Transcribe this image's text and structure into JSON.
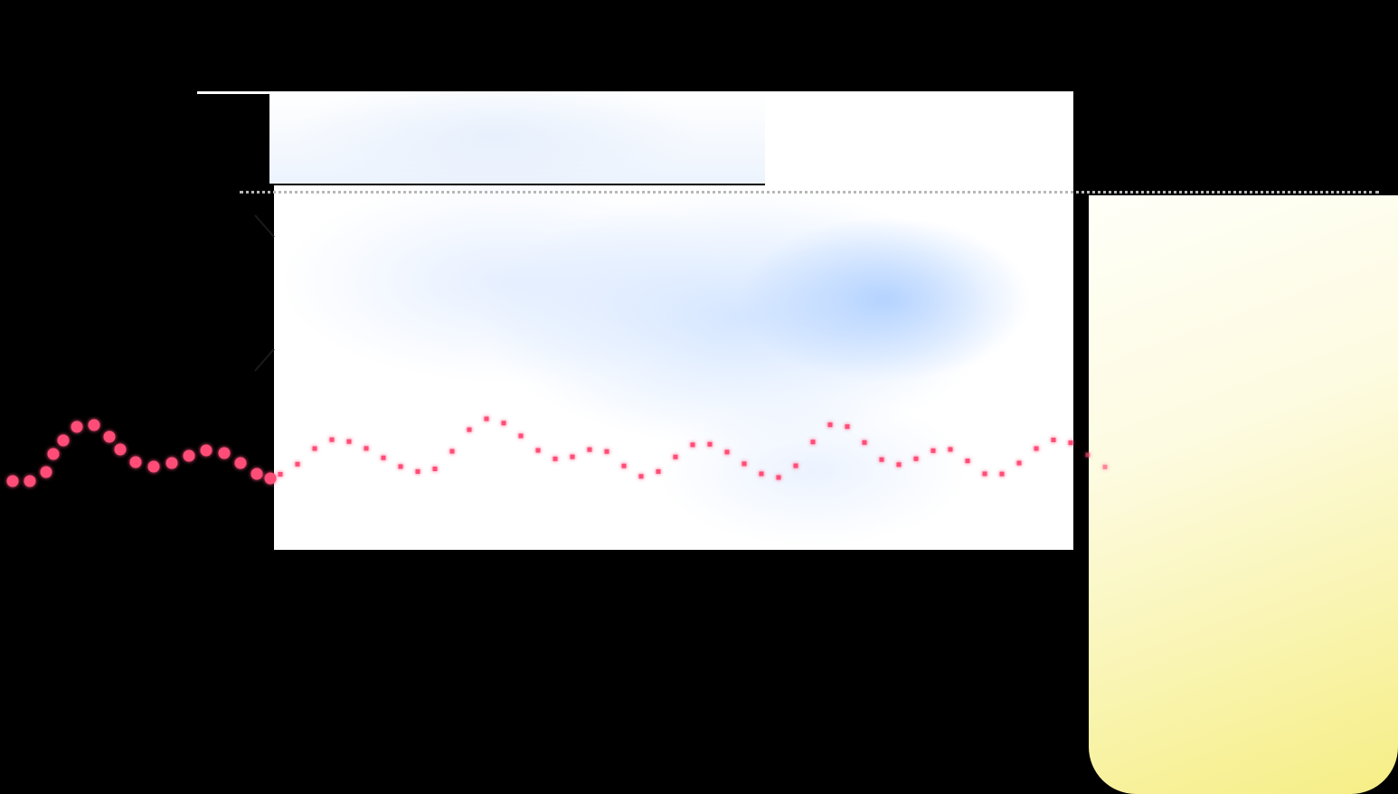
{
  "colors": {
    "background": "#000000",
    "panel": "#ffffff",
    "watercolor_wash": "#b3d1ff",
    "guide_dots": "#b8b8b8",
    "wave_dots": "#ff4d78",
    "yellow_card_end": "#f6ee85"
  },
  "decorations": {
    "wave": "red-dotted-wave",
    "guide": "gray-dotted-guide-line",
    "card": "yellow-gradient-card"
  }
}
